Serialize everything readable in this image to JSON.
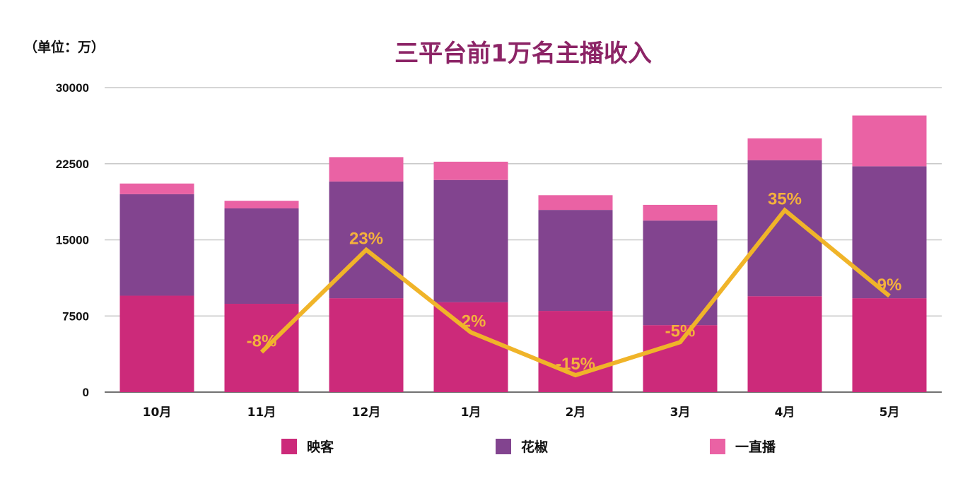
{
  "chart_data": {
    "type": "bar",
    "stacked": true,
    "title": "三平台前1万名主播收入",
    "unit_label": "（单位：万）",
    "categories": [
      "10月",
      "11月",
      "12月",
      "1月",
      "2月",
      "3月",
      "4月",
      "5月"
    ],
    "ylim": [
      0,
      30000
    ],
    "yticks": [
      "0",
      "7500",
      "15000",
      "22500",
      "30000"
    ],
    "grid": true,
    "legend_position": "bottom",
    "series": [
      {
        "name": "映客",
        "color": "#cc2a7a",
        "values": [
          9500,
          8700,
          9250,
          8850,
          8000,
          6600,
          9450,
          9250
        ]
      },
      {
        "name": "花椒",
        "color": "#82448f",
        "values": [
          10000,
          9400,
          11500,
          12050,
          9950,
          10300,
          13400,
          13000
        ]
      },
      {
        "name": "一直播",
        "color": "#ea62a4",
        "values": [
          1050,
          750,
          2400,
          1800,
          1450,
          1550,
          2150,
          5000
        ]
      }
    ],
    "growth_line": {
      "color": "#f0b429",
      "values": [
        null,
        -8,
        23,
        -2,
        -15,
        -5,
        35,
        9
      ],
      "labels": [
        "",
        "-8%",
        "23%",
        "-2%",
        "-15%",
        "-5%",
        "35%",
        "9%"
      ]
    }
  }
}
